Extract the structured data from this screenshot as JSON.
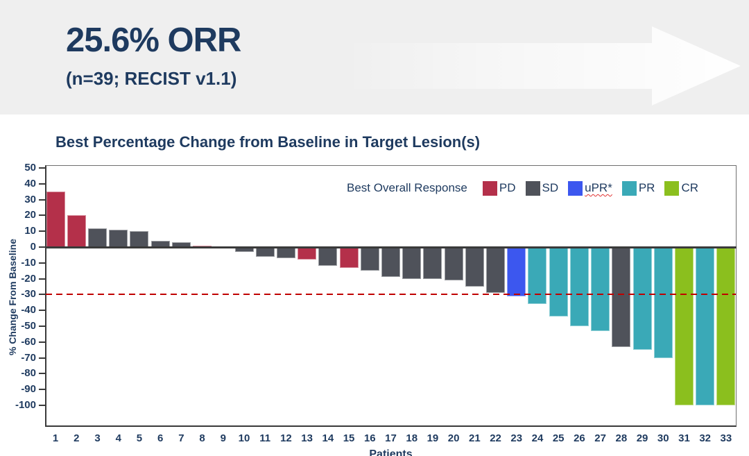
{
  "header": {
    "title": "25.6% ORR",
    "subtitle": "(n=39; RECIST v1.1)"
  },
  "chart_data": {
    "type": "bar",
    "title": "Best Percentage Change from Baseline in Target Lesion(s)",
    "xlabel": "Patients",
    "ylabel": "% Change From Baseline",
    "ylim": [
      -100,
      50
    ],
    "ytick_step": 10,
    "grid": false,
    "reference_line": {
      "value": -30,
      "style": "dashed",
      "color": "#c00000"
    },
    "legend": {
      "title": "Best Overall Response",
      "position": "top-right",
      "items": [
        {
          "code": "PD",
          "label": "PD",
          "color": "#b4304a",
          "squiggle": false
        },
        {
          "code": "SD",
          "label": "SD",
          "color": "#4f525a",
          "squiggle": false
        },
        {
          "code": "uPR",
          "label": "uPR*",
          "color": "#3c57ef",
          "squiggle": true
        },
        {
          "code": "PR",
          "label": "PR",
          "color": "#3aa9b7",
          "squiggle": false
        },
        {
          "code": "CR",
          "label": "CR",
          "color": "#8bbf1e",
          "squiggle": false
        }
      ]
    },
    "categories": [
      1,
      2,
      3,
      4,
      5,
      6,
      7,
      8,
      9,
      10,
      11,
      12,
      13,
      14,
      15,
      16,
      17,
      18,
      19,
      20,
      21,
      22,
      23,
      24,
      25,
      26,
      27,
      28,
      29,
      30,
      31,
      32,
      33
    ],
    "values": [
      35,
      20,
      12,
      11,
      10,
      4,
      3,
      1,
      0,
      -3,
      -6,
      -7,
      -8,
      -12,
      -13,
      -15,
      -19,
      -20,
      -20,
      -21,
      -25,
      -29,
      -31,
      -36,
      -44,
      -50,
      -53,
      -63,
      -65,
      -70,
      -100,
      -100,
      -100
    ],
    "responses": [
      "PD",
      "PD",
      "SD",
      "SD",
      "SD",
      "SD",
      "SD",
      "PD",
      "SD",
      "SD",
      "SD",
      "SD",
      "PD",
      "SD",
      "PD",
      "SD",
      "SD",
      "SD",
      "SD",
      "SD",
      "SD",
      "SD",
      "uPR",
      "PR",
      "PR",
      "PR",
      "PR",
      "SD",
      "PR",
      "PR",
      "CR",
      "PR",
      "CR"
    ]
  },
  "colors": {
    "accent_navy": "#1e3a5f",
    "header_background": "#efefef",
    "reference_line": "#c00000",
    "axis": "#3a3a3a"
  }
}
